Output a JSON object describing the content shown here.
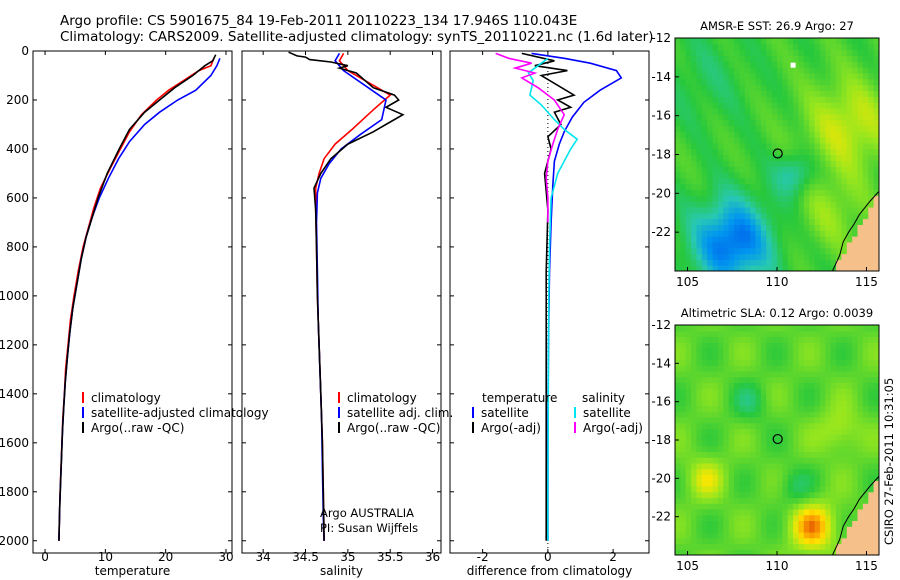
{
  "header": {
    "line1": "Argo profile: CS 5901675_84 19-Feb-2011 20110223_134 17.946S 110.043E",
    "line2": "Climatology: CARS2009. Satellite-adjusted climatology: synTS_20110221.nc (1.6d later)"
  },
  "footer": {
    "argo": "Argo AUSTRALIA",
    "pi": "PI: Susan Wijffels",
    "stamp": "CSIRO 27-Feb-2011 10:31:05"
  },
  "colors": {
    "climatology": "#ff0000",
    "satellite": "#0000ff",
    "argo": "#000000",
    "sat_diff_salinity": "#00e5ee",
    "argo_diff_salinity": "#ff00ff"
  },
  "chart_data": [
    {
      "type": "line",
      "name": "temperature-profile",
      "xlabel": "temperature",
      "ylim": [
        2050,
        0
      ],
      "xlim": [
        -2,
        31
      ],
      "xticks": [
        0,
        10,
        20,
        30
      ],
      "yticks": [
        0,
        200,
        400,
        600,
        800,
        1000,
        1200,
        1400,
        1600,
        1800,
        2000
      ],
      "legend": [
        "climatology",
        "satellite-adjusted climatology",
        "Argo(..raw -QC)"
      ],
      "series": [
        {
          "name": "climatology",
          "color": "#ff0000",
          "points": [
            [
              28,
              30
            ],
            [
              27.5,
              60
            ],
            [
              25.5,
              80
            ],
            [
              23,
              120
            ],
            [
              20.5,
              160
            ],
            [
              18.5,
              200
            ],
            [
              16,
              260
            ],
            [
              14,
              330
            ],
            [
              12.5,
              400
            ],
            [
              10.8,
              480
            ],
            [
              9.2,
              560
            ],
            [
              8.1,
              640
            ],
            [
              7.2,
              720
            ],
            [
              6.3,
              800
            ],
            [
              5.5,
              900
            ],
            [
              4.8,
              1000
            ],
            [
              4.2,
              1100
            ],
            [
              3.8,
              1200
            ],
            [
              3.4,
              1300
            ],
            [
              3.2,
              1400
            ],
            [
              2.95,
              1500
            ],
            [
              2.8,
              1600
            ],
            [
              2.65,
              1700
            ],
            [
              2.5,
              1800
            ],
            [
              2.4,
              1900
            ],
            [
              2.3,
              2000
            ]
          ]
        },
        {
          "name": "satellite-adjusted climatology",
          "color": "#0000ff",
          "points": [
            [
              29,
              30
            ],
            [
              28.5,
              60
            ],
            [
              27.5,
              100
            ],
            [
              25,
              160
            ],
            [
              22,
              200
            ],
            [
              19,
              250
            ],
            [
              16.5,
              300
            ],
            [
              14,
              370
            ],
            [
              12.2,
              440
            ],
            [
              10.5,
              520
            ],
            [
              9.0,
              600
            ],
            [
              7.8,
              680
            ],
            [
              6.8,
              760
            ],
            [
              6.0,
              850
            ],
            [
              5.3,
              950
            ],
            [
              4.6,
              1050
            ],
            [
              4.1,
              1150
            ],
            [
              3.7,
              1250
            ],
            [
              3.35,
              1350
            ],
            [
              3.1,
              1450
            ],
            [
              2.9,
              1550
            ],
            [
              2.75,
              1650
            ],
            [
              2.6,
              1750
            ],
            [
              2.45,
              1850
            ],
            [
              2.35,
              1950
            ],
            [
              2.3,
              2000
            ]
          ]
        },
        {
          "name": "Argo(..raw -QC)",
          "color": "#000000",
          "points": [
            [
              28.3,
              15
            ],
            [
              27.8,
              40
            ],
            [
              26.5,
              60
            ],
            [
              24.5,
              100
            ],
            [
              21.5,
              150
            ],
            [
              19,
              200
            ],
            [
              16.5,
              250
            ],
            [
              14,
              320
            ],
            [
              12.3,
              400
            ],
            [
              10.3,
              500
            ],
            [
              8.8,
              600
            ],
            [
              7.8,
              680
            ],
            [
              6.8,
              760
            ],
            [
              6.0,
              850
            ],
            [
              5.3,
              950
            ],
            [
              4.6,
              1050
            ],
            [
              4.1,
              1150
            ],
            [
              3.7,
              1250
            ],
            [
              3.35,
              1350
            ],
            [
              3.1,
              1450
            ],
            [
              2.9,
              1550
            ],
            [
              2.75,
              1650
            ],
            [
              2.6,
              1750
            ],
            [
              2.45,
              1850
            ],
            [
              2.35,
              1950
            ],
            [
              2.3,
              2000
            ]
          ]
        }
      ]
    },
    {
      "type": "line",
      "name": "salinity-profile",
      "xlabel": "salinity",
      "ylim": [
        2050,
        0
      ],
      "xlim": [
        33.75,
        36.1
      ],
      "xticks": [
        34,
        34.5,
        35,
        35.5,
        36
      ],
      "legend": [
        "climatology",
        "satellite adj. clim.",
        "Argo(..raw -QC)"
      ],
      "series": [
        {
          "name": "climatology",
          "color": "#ff0000",
          "points": [
            [
              34.95,
              10
            ],
            [
              34.9,
              40
            ],
            [
              35.0,
              80
            ],
            [
              35.2,
              120
            ],
            [
              35.5,
              180
            ],
            [
              35.3,
              240
            ],
            [
              35.05,
              320
            ],
            [
              34.85,
              380
            ],
            [
              34.72,
              440
            ],
            [
              34.66,
              500
            ],
            [
              34.62,
              560
            ],
            [
              34.62,
              650
            ],
            [
              34.63,
              800
            ],
            [
              34.64,
              1000
            ],
            [
              34.66,
              1200
            ],
            [
              34.68,
              1400
            ],
            [
              34.7,
              1600
            ],
            [
              34.71,
              1800
            ],
            [
              34.72,
              2000
            ]
          ]
        },
        {
          "name": "satellite adj. clim.",
          "color": "#0000ff",
          "points": [
            [
              34.9,
              10
            ],
            [
              34.85,
              40
            ],
            [
              34.95,
              80
            ],
            [
              35.2,
              140
            ],
            [
              35.45,
              200
            ],
            [
              35.4,
              280
            ],
            [
              35.15,
              340
            ],
            [
              34.92,
              400
            ],
            [
              34.78,
              460
            ],
            [
              34.68,
              520
            ],
            [
              34.64,
              580
            ],
            [
              34.63,
              700
            ],
            [
              34.64,
              900
            ],
            [
              34.65,
              1100
            ],
            [
              34.67,
              1300
            ],
            [
              34.69,
              1500
            ],
            [
              34.7,
              1700
            ],
            [
              34.71,
              1900
            ],
            [
              34.72,
              2000
            ]
          ]
        },
        {
          "name": "Argo(..raw -QC)",
          "color": "#000000",
          "points": [
            [
              34.3,
              5
            ],
            [
              34.4,
              20
            ],
            [
              34.5,
              25
            ],
            [
              34.55,
              35
            ],
            [
              34.8,
              45
            ],
            [
              35.0,
              60
            ],
            [
              34.9,
              70
            ],
            [
              35.1,
              90
            ],
            [
              35.3,
              150
            ],
            [
              35.55,
              180
            ],
            [
              35.6,
              200
            ],
            [
              35.45,
              230
            ],
            [
              35.65,
              260
            ],
            [
              35.5,
              290
            ],
            [
              35.3,
              330
            ],
            [
              35.0,
              380
            ],
            [
              34.8,
              440
            ],
            [
              34.68,
              500
            ],
            [
              34.6,
              560
            ],
            [
              34.62,
              650
            ],
            [
              34.63,
              800
            ],
            [
              34.64,
              1000
            ],
            [
              34.66,
              1200
            ],
            [
              34.68,
              1400
            ],
            [
              34.7,
              1600
            ],
            [
              34.71,
              1800
            ],
            [
              34.72,
              2000
            ]
          ]
        }
      ]
    },
    {
      "type": "line",
      "name": "difference-profile",
      "xlabel": "difference from climatology",
      "ylim": [
        2050,
        0
      ],
      "xlim": [
        -3,
        3.1
      ],
      "xticks": [
        -2,
        0,
        2
      ],
      "legend": [
        "temperature",
        "satellite",
        "Argo(-adj)",
        "salinity",
        "satellite",
        "Argo(-adj)"
      ],
      "series": [
        {
          "name": "temperature satellite",
          "color": "#0000ff",
          "points": [
            [
              -0.5,
              10
            ],
            [
              0.5,
              30
            ],
            [
              1.3,
              50
            ],
            [
              2.1,
              80
            ],
            [
              2.25,
              110
            ],
            [
              1.6,
              160
            ],
            [
              1.1,
              210
            ],
            [
              0.75,
              270
            ],
            [
              0.5,
              330
            ],
            [
              0.35,
              380
            ],
            [
              0.2,
              450
            ],
            [
              0.15,
              550
            ],
            [
              0.1,
              700
            ],
            [
              0.05,
              900
            ],
            [
              0.02,
              1200
            ],
            [
              0.0,
              1500
            ],
            [
              0.0,
              1800
            ],
            [
              0.0,
              2000
            ]
          ]
        },
        {
          "name": "temperature Argo(-adj)",
          "color": "#000000",
          "points": [
            [
              -0.8,
              10
            ],
            [
              0.2,
              40
            ],
            [
              -0.4,
              60
            ],
            [
              0.6,
              80
            ],
            [
              -0.2,
              100
            ],
            [
              0.8,
              180
            ],
            [
              0.3,
              200
            ],
            [
              0.7,
              230
            ],
            [
              0.2,
              250
            ],
            [
              0.4,
              300
            ],
            [
              0.0,
              350
            ],
            [
              0.1,
              400
            ],
            [
              -0.1,
              500
            ],
            [
              0.0,
              650
            ],
            [
              -0.05,
              900
            ],
            [
              -0.05,
              1200
            ],
            [
              -0.05,
              1500
            ],
            [
              -0.05,
              1800
            ],
            [
              -0.05,
              2000
            ]
          ]
        },
        {
          "name": "salinity satellite",
          "color": "#00e5ee",
          "points": [
            [
              0.0,
              30
            ],
            [
              -0.3,
              60
            ],
            [
              -0.6,
              90
            ],
            [
              -0.45,
              120
            ],
            [
              -0.55,
              180
            ],
            [
              -0.2,
              220
            ],
            [
              0.2,
              280
            ],
            [
              0.5,
              320
            ],
            [
              0.9,
              360
            ],
            [
              0.7,
              400
            ],
            [
              0.3,
              500
            ],
            [
              0.1,
              600
            ],
            [
              0.05,
              800
            ],
            [
              0.03,
              1000
            ],
            [
              0.02,
              1200
            ],
            [
              0.01,
              1500
            ],
            [
              0.0,
              1800
            ],
            [
              0.0,
              2000
            ]
          ]
        },
        {
          "name": "salinity Argo(-adj)",
          "color": "#ff00ff",
          "points": [
            [
              -1.6,
              10
            ],
            [
              -1.2,
              30
            ],
            [
              -0.5,
              50
            ],
            [
              -1.0,
              70
            ],
            [
              -0.4,
              90
            ],
            [
              -0.8,
              110
            ],
            [
              -0.3,
              150
            ],
            [
              0.2,
              200
            ],
            [
              0.5,
              260
            ],
            [
              0.3,
              320
            ],
            [
              0.15,
              380
            ],
            [
              0.0,
              450
            ],
            [
              -0.05,
              520
            ],
            [
              0.0,
              600
            ],
            [
              0.0,
              700
            ]
          ]
        }
      ]
    },
    {
      "type": "heatmap",
      "name": "sst-map",
      "title": "AMSR-E SST: 26.9 Argo: 27",
      "xticks": [
        105,
        110,
        115
      ],
      "yticks": [
        -12,
        -14,
        -16,
        -18,
        -20,
        -22
      ],
      "xlim": [
        104.3,
        115.7
      ],
      "ylim": [
        -24.0,
        -12.0
      ],
      "marker": {
        "lon": 110.04,
        "lat": -17.95
      }
    },
    {
      "type": "heatmap",
      "name": "sla-map",
      "title": "Altimetric SLA: 0.12 Argo: 0.0039",
      "xticks": [
        105,
        110,
        115
      ],
      "yticks": [
        -12,
        -14,
        -16,
        -18,
        -20,
        -22
      ],
      "xlim": [
        104.3,
        115.7
      ],
      "ylim": [
        -24.0,
        -12.0
      ],
      "marker": {
        "lon": 110.04,
        "lat": -17.95
      }
    }
  ]
}
